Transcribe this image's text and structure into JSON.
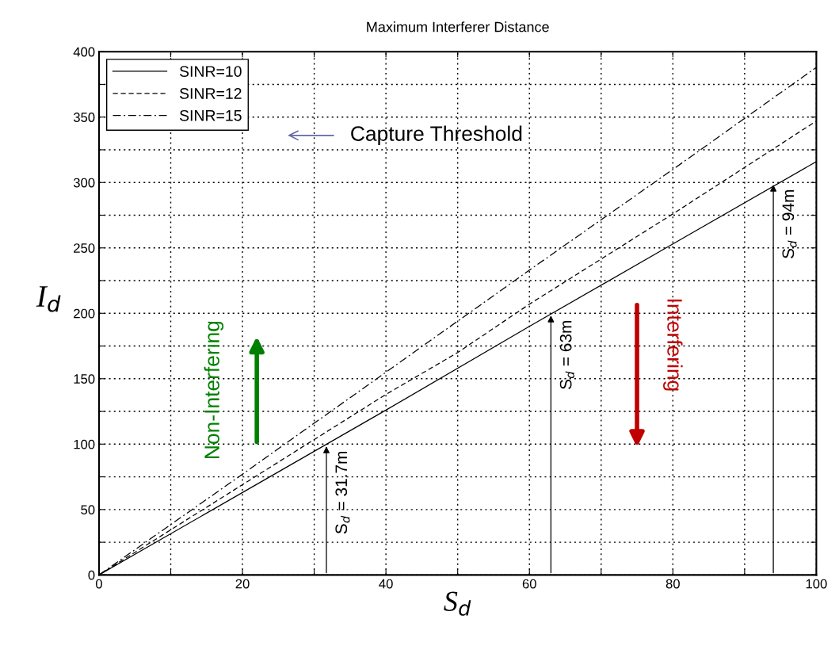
{
  "chart_data": {
    "type": "line",
    "title": "Maximum Interferer Distance",
    "xlabel": "S$_{d}$",
    "ylabel": "I$_{d}$",
    "xlim": [
      0,
      100
    ],
    "ylim": [
      0,
      400
    ],
    "xticks": [
      0,
      {
        "value": 10,
        "label": null
      },
      20,
      {
        "value": 30,
        "label": null
      },
      40,
      {
        "value": 50,
        "label": null
      },
      60,
      {
        "value": 70,
        "label": null
      },
      80,
      {
        "value": 90,
        "label": null
      },
      100
    ],
    "yticks": [
      0,
      {
        "value": 25,
        "label": null
      },
      50,
      {
        "value": 75,
        "label": null
      },
      100,
      {
        "value": 125,
        "label": null
      },
      150,
      {
        "value": 175,
        "label": null
      },
      200,
      {
        "value": 225,
        "label": null
      },
      250,
      {
        "value": 275,
        "label": null
      },
      300,
      {
        "value": 325,
        "label": null
      },
      350,
      {
        "value": 375,
        "label": null
      },
      400
    ],
    "grid": true,
    "legend": "top left",
    "marker": "none",
    "series": [
      {
        "name": "SINR=10",
        "color": "#000000",
        "line_style": "solid",
        "x": [
          0,
          20,
          40,
          60,
          80,
          100
        ],
        "values": [
          0,
          63,
          126,
          190,
          253,
          316
        ]
      },
      {
        "name": "SINR=12",
        "color": "#000000",
        "line_style": "dashed",
        "x": [
          0,
          20,
          40,
          50,
          60,
          80,
          100
        ],
        "values": [
          0,
          69,
          138,
          170,
          207,
          276,
          347
        ]
      },
      {
        "name": "SINR=15",
        "color": "#000000",
        "line_style": "dashdot",
        "x": [
          0,
          20,
          40,
          60,
          80,
          100
        ],
        "values": [
          0,
          77,
          155,
          233,
          310,
          388
        ]
      }
    ],
    "annotations": [
      {
        "text": "S$_{d}$ = 31.7m",
        "x": 31.7,
        "y": 100
      },
      {
        "text": "S$_{d}$ = 63m",
        "x": 63,
        "y": 200
      },
      {
        "text": "S$_{d}$ = 94m",
        "x": 94,
        "y": 300
      },
      "Capture Threshold",
      "Non-Interfering",
      "Interfering"
    ]
  }
}
